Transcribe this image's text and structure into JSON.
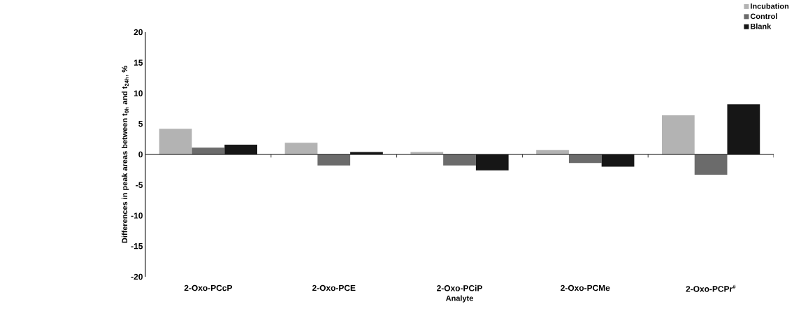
{
  "chart_data": {
    "type": "bar",
    "categories": [
      "2-Oxo-PCcP",
      "2-Oxo-PCE",
      "2-Oxo-PCiP",
      "2-Oxo-PCMe",
      "2-Oxo-PCPr$^{#}$"
    ],
    "series": [
      {
        "name": "Incubation",
        "color": "#b3b3b3",
        "values": [
          4.2,
          1.9,
          0.4,
          0.7,
          6.4
        ]
      },
      {
        "name": "Control",
        "color": "#6b6b6b",
        "values": [
          1.1,
          -1.8,
          -1.8,
          -1.4,
          -3.3
        ]
      },
      {
        "name": "Blank",
        "color": "#161616",
        "values": [
          1.6,
          0.4,
          -2.6,
          -2.0,
          8.2
        ]
      }
    ],
    "xlabel": "Analyte",
    "ylabel": "Differences in peak areas between t$_{0h}$ and t$_{24h}$, %",
    "ylim": [
      -20,
      20
    ],
    "yticks": [
      -20,
      -15,
      -10,
      -5,
      0,
      5,
      10,
      15,
      20
    ],
    "legend": "top right"
  }
}
